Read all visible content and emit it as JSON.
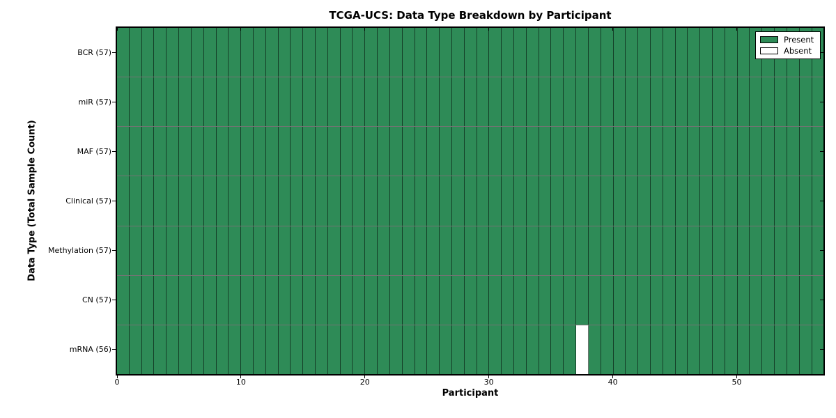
{
  "chart_data": {
    "type": "heatmap",
    "title": "TCGA-UCS: Data Type Breakdown by Participant",
    "xlabel": "Participant",
    "ylabel": "Data Type (Total Sample Count)",
    "n_participants": 57,
    "x_range": [
      0,
      57
    ],
    "x_ticks": [
      0,
      10,
      20,
      30,
      40,
      50
    ],
    "rows": [
      {
        "label": "BCR (57)",
        "present_count": 57,
        "absent_columns": []
      },
      {
        "label": "miR (57)",
        "present_count": 57,
        "absent_columns": []
      },
      {
        "label": "MAF (57)",
        "present_count": 57,
        "absent_columns": []
      },
      {
        "label": "Clinical (57)",
        "present_count": 57,
        "absent_columns": []
      },
      {
        "label": "Methylation (57)",
        "present_count": 57,
        "absent_columns": []
      },
      {
        "label": "CN (57)",
        "present_count": 57,
        "absent_columns": []
      },
      {
        "label": "mRNA (56)",
        "present_count": 56,
        "absent_columns": [
          37
        ]
      }
    ],
    "legend": [
      {
        "label": "Present",
        "color": "#2e8b57"
      },
      {
        "label": "Absent",
        "color": "#ffffff"
      }
    ],
    "legend_position": "upper right",
    "colors": {
      "present": "#2e8b57",
      "absent": "#ffffff",
      "cell_edge": "rgba(0,0,0,0.55)",
      "spine": "#000000"
    },
    "grid": "cell-borders"
  }
}
